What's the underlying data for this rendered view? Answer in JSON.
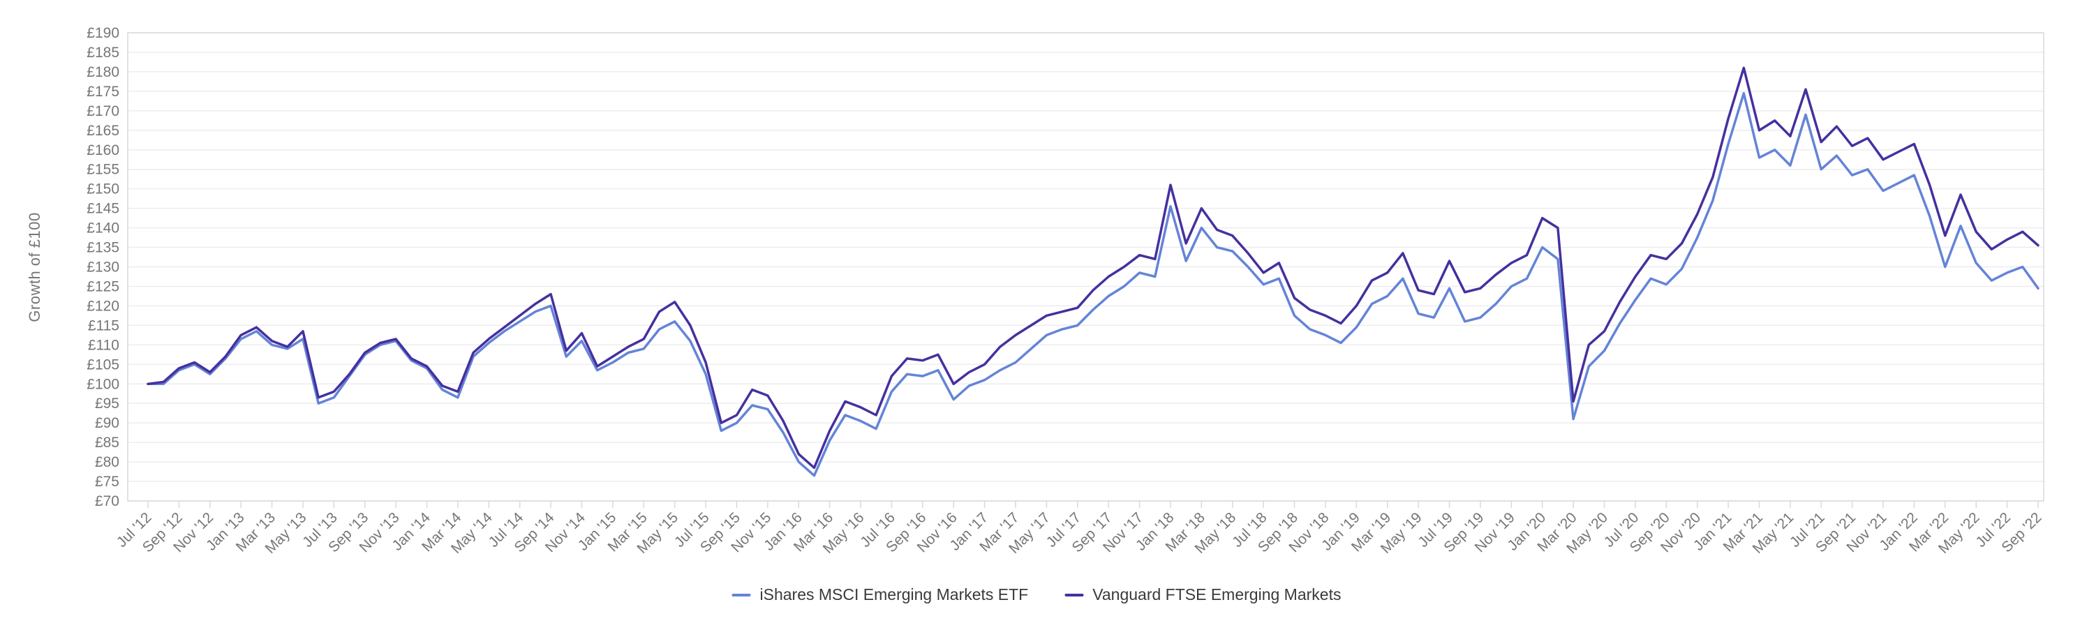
{
  "chart_data": {
    "type": "line",
    "title": "",
    "xlabel": "",
    "ylabel": "Growth of £100",
    "ylim": [
      70,
      190
    ],
    "grid": "horizontal",
    "legend_position": "bottom-center",
    "x_unit": "month",
    "x_tick_every_months": 2,
    "y_tick_labels": [
      "£190",
      "£185",
      "£180",
      "£175",
      "£170",
      "£165",
      "£160",
      "£155",
      "£150",
      "£145",
      "£140",
      "£135",
      "£130",
      "£125",
      "£120",
      "£115",
      "£110",
      "£105",
      "£100",
      "£95",
      "£90",
      "£85",
      "£80",
      "£75",
      "£70"
    ],
    "x_tick_labels": [
      "Jul '12",
      "Sep '12",
      "Nov '12",
      "Jan '13",
      "Mar '13",
      "May '13",
      "Jul '13",
      "Sep '13",
      "Nov '13",
      "Jan '14",
      "Mar '14",
      "May '14",
      "Jul '14",
      "Sep '14",
      "Nov '14",
      "Jan '15",
      "Mar '15",
      "May '15",
      "Jul '15",
      "Sep '15",
      "Nov '15",
      "Jan '16",
      "Mar '16",
      "May '16",
      "Jul '16",
      "Sep '16",
      "Nov '16",
      "Jan '17",
      "Mar '17",
      "May '17",
      "Jul '17",
      "Sep '17",
      "Nov '17",
      "Jan '18",
      "Mar '18",
      "May '18",
      "Jul '18",
      "Sep '18",
      "Nov '18",
      "Jan '19",
      "Mar '19",
      "May '19",
      "Jul '19",
      "Sep '19",
      "Nov '19",
      "Jan '20",
      "Mar '20",
      "May '20",
      "Jul '20",
      "Sep '20",
      "Nov '20",
      "Jan '21",
      "Mar '21",
      "May '21",
      "Jul '21",
      "Sep '21",
      "Nov '21",
      "Jan '22",
      "Mar '22",
      "May '22",
      "Jul '22",
      "Sep '22"
    ],
    "series": [
      {
        "name": "iShares MSCI Emerging Markets ETF",
        "color": "#6484d7",
        "values": [
          100.0,
          100.0,
          103.5,
          105.0,
          102.5,
          106.5,
          111.5,
          113.5,
          110.0,
          109.0,
          111.5,
          95.0,
          96.5,
          102.0,
          107.5,
          110.0,
          111.0,
          106.0,
          104.0,
          98.5,
          96.5,
          107.0,
          110.5,
          113.5,
          116.0,
          118.5,
          120.0,
          107.0,
          111.0,
          103.5,
          105.5,
          108.0,
          109.0,
          114.0,
          116.0,
          111.0,
          102.5,
          88.0,
          90.0,
          94.5,
          93.5,
          87.5,
          80.0,
          76.5,
          85.5,
          92.0,
          90.5,
          88.5,
          98.0,
          102.5,
          102.0,
          103.5,
          96.0,
          99.5,
          101.0,
          103.5,
          105.5,
          109.0,
          112.5,
          114.0,
          115.0,
          119.0,
          122.5,
          125.0,
          128.5,
          127.5,
          145.5,
          131.5,
          140.0,
          135.0,
          134.0,
          130.0,
          125.5,
          127.0,
          117.5,
          114.0,
          112.5,
          110.5,
          114.5,
          120.5,
          122.5,
          127.0,
          118.0,
          117.0,
          124.5,
          116.0,
          117.0,
          120.5,
          125.0,
          127.0,
          135.0,
          132.0,
          91.0,
          104.5,
          108.5,
          115.5,
          121.5,
          127.0,
          125.5,
          129.5,
          137.5,
          147.0,
          161.5,
          174.5,
          158.0,
          160.0,
          156.0,
          169.0,
          155.0,
          158.5,
          153.5,
          155.0,
          149.5,
          151.5,
          153.5,
          143.0,
          130.0,
          140.5,
          131.0,
          126.5,
          128.5,
          130.0,
          124.5
        ]
      },
      {
        "name": "Vanguard FTSE Emerging Markets",
        "color": "#45309f",
        "values": [
          100.0,
          100.5,
          104.0,
          105.5,
          103.0,
          107.0,
          112.5,
          114.5,
          111.0,
          109.5,
          113.5,
          96.5,
          98.0,
          102.5,
          108.0,
          110.5,
          111.5,
          106.5,
          104.5,
          99.5,
          98.0,
          108.0,
          111.5,
          114.5,
          117.5,
          120.5,
          123.0,
          108.5,
          113.0,
          104.5,
          107.0,
          109.5,
          111.5,
          118.5,
          121.0,
          115.0,
          105.5,
          90.0,
          92.0,
          98.5,
          97.0,
          90.5,
          82.0,
          78.5,
          88.0,
          95.5,
          94.0,
          92.0,
          102.0,
          106.5,
          106.0,
          107.5,
          100.0,
          103.0,
          105.0,
          109.5,
          112.5,
          115.0,
          117.5,
          118.5,
          119.5,
          124.0,
          127.5,
          130.0,
          133.0,
          132.0,
          151.0,
          136.0,
          145.0,
          139.5,
          138.0,
          133.5,
          128.5,
          131.0,
          122.0,
          119.0,
          117.5,
          115.5,
          120.0,
          126.5,
          128.5,
          133.5,
          124.0,
          123.0,
          131.5,
          123.5,
          124.5,
          128.0,
          131.0,
          133.0,
          142.5,
          140.0,
          95.5,
          110.0,
          113.5,
          121.0,
          127.5,
          133.0,
          132.0,
          136.0,
          143.5,
          153.0,
          168.0,
          181.0,
          165.0,
          167.5,
          163.5,
          175.5,
          162.0,
          166.0,
          161.0,
          163.0,
          157.5,
          159.5,
          161.5,
          151.0,
          138.0,
          148.5,
          139.0,
          134.5,
          137.0,
          139.0,
          135.5
        ]
      }
    ],
    "colors": {
      "gridline": "#ededf0",
      "axis_border": "#d8d9dc",
      "axis_text": "#75767a",
      "legend_text": "#3a3a3d",
      "background": "#ffffff"
    }
  }
}
